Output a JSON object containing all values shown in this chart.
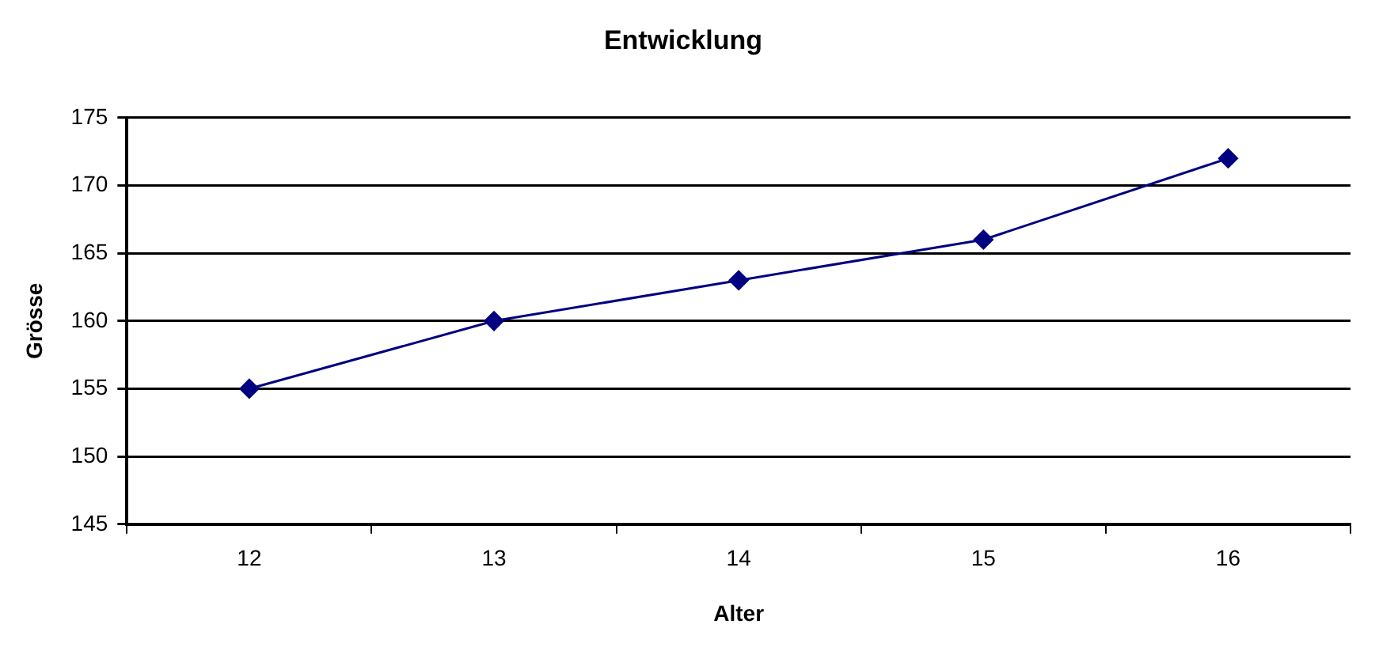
{
  "chart_data": {
    "type": "line",
    "title": "Entwicklung",
    "xlabel": "Alter",
    "ylabel": "Grösse",
    "categories": [
      "12",
      "13",
      "14",
      "15",
      "16"
    ],
    "series": [
      {
        "color": "#000080",
        "values": [
          155,
          160,
          163,
          166,
          172
        ]
      }
    ],
    "ylim": [
      145,
      175
    ],
    "yticks": [
      145,
      150,
      155,
      160,
      165,
      170,
      175
    ],
    "grid": "y",
    "legend": false,
    "marker": "diamond",
    "line_style": "solid"
  }
}
